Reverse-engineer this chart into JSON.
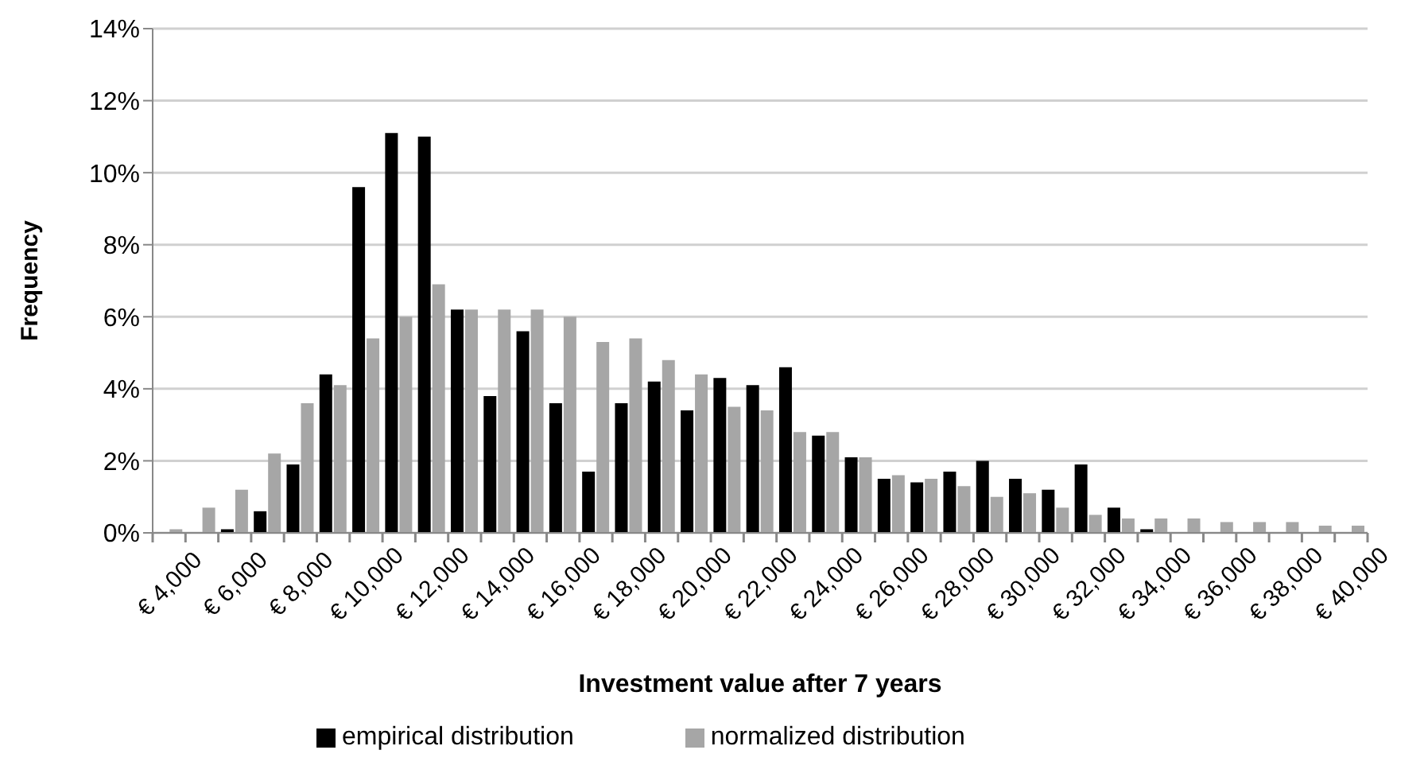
{
  "chart_data": {
    "type": "bar",
    "xlabel": "Investment value after 7 years",
    "ylabel": "Frequency",
    "categories": [
      "€ 4,000",
      null,
      "€ 6,000",
      null,
      "€ 8,000",
      null,
      "€ 10,000",
      null,
      "€ 12,000",
      null,
      "€ 14,000",
      null,
      "€ 16,000",
      null,
      "€ 18,000",
      null,
      "€ 20,000",
      null,
      "€ 22,000",
      null,
      "€ 24,000",
      null,
      "€ 26,000",
      null,
      "€ 28,000",
      null,
      "€ 30,000",
      null,
      "€ 32,000",
      null,
      "€ 34,000",
      null,
      "€ 36,000",
      null,
      "€ 38,000",
      null,
      "€ 40,000"
    ],
    "series": [
      {
        "name": "empirical distribution",
        "color": "#000000",
        "values": [
          0,
          0,
          0.1,
          0.6,
          1.9,
          4.4,
          9.6,
          11.1,
          11.0,
          6.2,
          3.8,
          5.6,
          3.6,
          1.7,
          3.6,
          4.2,
          3.4,
          4.3,
          4.1,
          4.6,
          2.7,
          2.1,
          1.5,
          1.4,
          1.7,
          2.0,
          1.5,
          1.2,
          1.9,
          0.7,
          0.1,
          0,
          0,
          0,
          0,
          0,
          0
        ]
      },
      {
        "name": "normalized distribution",
        "color": "#a6a6a6",
        "values": [
          0.1,
          0.7,
          1.2,
          2.2,
          3.6,
          4.1,
          5.4,
          6.0,
          6.9,
          6.2,
          6.2,
          6.2,
          6.0,
          5.3,
          5.4,
          4.8,
          4.4,
          3.5,
          3.4,
          2.8,
          2.8,
          2.1,
          1.6,
          1.5,
          1.3,
          1.0,
          1.1,
          0.7,
          0.5,
          0.4,
          0.4,
          0.4,
          0.3,
          0.3,
          0.3,
          0.2,
          0.2
        ]
      }
    ],
    "ylim": [
      0,
      14
    ],
    "yticks": [
      {
        "value": 0,
        "label": "0%"
      },
      {
        "value": 2,
        "label": "2%"
      },
      {
        "value": 4,
        "label": "4%"
      },
      {
        "value": 6,
        "label": "6%"
      },
      {
        "value": 8,
        "label": "8%"
      },
      {
        "value": 10,
        "label": "10%"
      },
      {
        "value": 12,
        "label": "12%"
      },
      {
        "value": 14,
        "label": "14%"
      }
    ],
    "grid": "y",
    "legend": "bottom"
  }
}
